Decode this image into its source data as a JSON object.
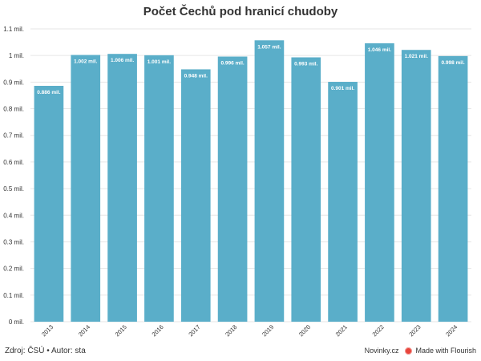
{
  "chart_data": {
    "type": "bar",
    "title": "Počet Čechů pod hranicí chudoby",
    "categories": [
      "2013",
      "2014",
      "2015",
      "2016",
      "2017",
      "2018",
      "2019",
      "2020",
      "2021",
      "2022",
      "2023",
      "2024"
    ],
    "values": [
      0.886,
      1.002,
      1.006,
      1.001,
      0.948,
      0.996,
      1.057,
      0.993,
      0.901,
      1.046,
      1.021,
      0.998
    ],
    "value_labels": [
      "0.886 mil.",
      "1.002 mil.",
      "1.006 mil.",
      "1.001 mil.",
      "0.948 mil.",
      "0.996 mil.",
      "1.057 mil.",
      "0.993 mil.",
      "0.901 mil.",
      "1.046 mil.",
      "1.021 mil.",
      "0.998 mil."
    ],
    "ylim": [
      0,
      1.1
    ],
    "y_ticks": [
      0,
      0.1,
      0.2,
      0.3,
      0.4,
      0.5,
      0.6,
      0.7,
      0.8,
      0.9,
      1,
      1.1
    ],
    "y_tick_labels": [
      "0 mil.",
      "0.1 mil.",
      "0.2 mil.",
      "0.3 mil.",
      "0.4 mil.",
      "0.5 mil.",
      "0.6 mil.",
      "0.7 mil.",
      "0.8 mil.",
      "0.9 mil.",
      "1 mil.",
      "1.1 mil."
    ],
    "grid": true,
    "bar_color": "#5aaec9",
    "xlabel": "",
    "ylabel": ""
  },
  "footer": {
    "source": "Zdroj: ČSÚ • Autor: sta",
    "brand": "Novinky.cz",
    "made_with": "Made with Flourish"
  }
}
